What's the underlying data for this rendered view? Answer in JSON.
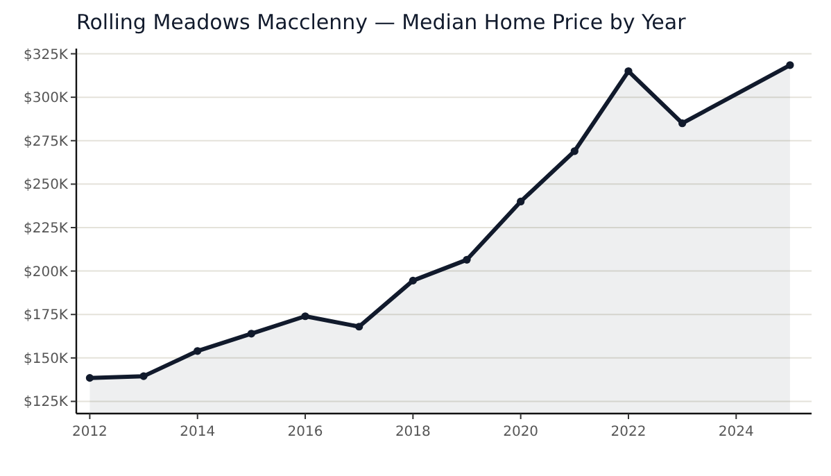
{
  "chart_data": {
    "type": "area",
    "title": "Rolling Meadows Macclenny — Median Home Price by Year",
    "x": [
      2012,
      2013,
      2014,
      2015,
      2016,
      2017,
      2018,
      2019,
      2020,
      2021,
      2022,
      2023,
      2025
    ],
    "series": [
      {
        "color": "#111a2c",
        "values": [
          138.5,
          139.5,
          154,
          164,
          174,
          168,
          194.5,
          206.5,
          240,
          269,
          315,
          285,
          318.5
        ]
      }
    ],
    "xlim": [
      2011.75,
      2025.4
    ],
    "ylim": [
      118,
      328
    ],
    "xticks": [
      2012,
      2014,
      2016,
      2018,
      2020,
      2022,
      2024
    ],
    "yticks": [
      {
        "value": 125,
        "label": "$125K"
      },
      {
        "value": 150,
        "label": "$150K"
      },
      {
        "value": 175,
        "label": "$175K"
      },
      {
        "value": 200,
        "label": "$200K"
      },
      {
        "value": 225,
        "label": "$225K"
      },
      {
        "value": 250,
        "label": "$250K"
      },
      {
        "value": 275,
        "label": "$275K"
      },
      {
        "value": 300,
        "label": "$300K"
      },
      {
        "value": 325,
        "label": "$325K"
      }
    ],
    "grid": "y",
    "marker": "circle",
    "line_style": "solid"
  }
}
